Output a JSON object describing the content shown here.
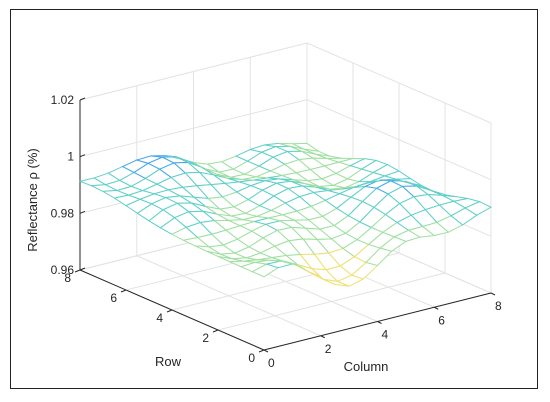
{
  "chart_data": {
    "type": "surface",
    "view": "3d-mesh",
    "xlabel": "Column",
    "ylabel": "Row",
    "zlabel": "Reflectance ρ (%)",
    "xlim": [
      0,
      8
    ],
    "ylim": [
      0,
      8
    ],
    "zlim": [
      0.96,
      1.02
    ],
    "xticks": [
      "0",
      "2",
      "4",
      "6",
      "8"
    ],
    "yticks": [
      "0",
      "2",
      "4",
      "6",
      "8"
    ],
    "zticks": [
      "0.96",
      "0.98",
      "1",
      "1.02"
    ],
    "grid": true,
    "colormap": [
      "#3d6fd6",
      "#47a6e8",
      "#5fd0c8",
      "#9fe0a0",
      "#f0e070",
      "#ffd860"
    ],
    "grid_points": {
      "x": [
        0,
        0.5,
        1,
        1.5,
        2,
        2.5,
        3,
        3.5,
        4,
        4.5,
        5,
        5.5,
        6,
        6.5,
        7,
        7.5,
        8
      ],
      "y": [
        0,
        0.5,
        1,
        1.5,
        2,
        2.5,
        3,
        3.5,
        4,
        4.5,
        5,
        5.5,
        6,
        6.5,
        7,
        7.5,
        8
      ]
    },
    "z_range_observed": [
      0.972,
      1.002
    ],
    "description_of_values": "Reflectance surface with values roughly between 0.972 and 1.002; higher values toward Row 6-8 / low Column, lower values toward low Row / mid Column."
  }
}
